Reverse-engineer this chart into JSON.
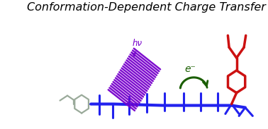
{
  "title": "Conformation-Dependent Charge Transfer",
  "title_fontsize": 11.5,
  "bg_color": "#ffffff",
  "blue_color": "#2222ee",
  "red_color": "#cc1111",
  "purple_color": "#7700cc",
  "green_color": "#1a5e00",
  "gray_color": "#9aaa9a",
  "arrow_text": "e⁻",
  "hv_text": "hν"
}
